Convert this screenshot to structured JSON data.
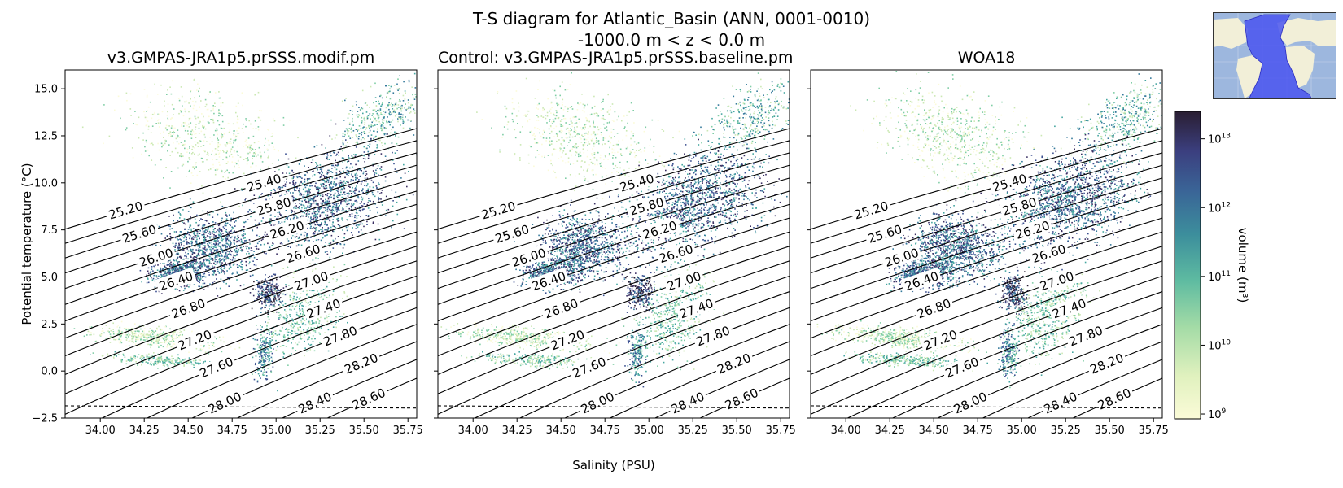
{
  "figure": {
    "title_line1": "T-S diagram for Atlantic_Basin (ANN, 0001-0010)",
    "title_line2": "-1000.0 m < z < 0.0 m"
  },
  "colors": {
    "contour": "#000000",
    "cmap": [
      "#fbfbd8",
      "#cbe8b3",
      "#7fcea5",
      "#45a6a0",
      "#34799b",
      "#3b4f90",
      "#3a2f63",
      "#2a1e32"
    ]
  },
  "chart_data": {
    "type": "scatter",
    "subtype": "2d-histogram T-S diagram with density contours",
    "xlabel": "Salinity (PSU)",
    "ylabel": "Potential temperature (°C)",
    "xlim": [
      33.8,
      35.8
    ],
    "ylim": [
      -2.5,
      16.0
    ],
    "xticks": [
      34.0,
      34.25,
      34.5,
      34.75,
      35.0,
      35.25,
      35.5,
      35.75
    ],
    "xtick_labels": [
      "34.00",
      "34.25",
      "34.50",
      "34.75",
      "35.00",
      "35.25",
      "35.50",
      "35.75"
    ],
    "yticks": [
      -2.5,
      0.0,
      2.5,
      5.0,
      7.5,
      10.0,
      12.5,
      15.0
    ],
    "ytick_labels": [
      "−2.5",
      "0.0",
      "2.5",
      "5.0",
      "7.5",
      "10.0",
      "12.5",
      "15.0"
    ],
    "freezing_line_temp": [
      -1.85,
      -1.97
    ],
    "density_contours": [
      25.2,
      25.4,
      25.6,
      25.8,
      26.0,
      26.2,
      26.4,
      26.6,
      26.8,
      27.0,
      27.2,
      27.4,
      27.6,
      27.8,
      28.0,
      28.2,
      28.4,
      28.6
    ],
    "density_labels": [
      "25.20",
      "25.40",
      "25.60",
      "25.80",
      "26.00",
      "26.20",
      "26.40",
      "26.60",
      "26.80",
      "27.00",
      "27.20",
      "27.40",
      "27.60",
      "27.80",
      "28.00",
      "28.20",
      "28.40",
      "28.60"
    ],
    "panels": [
      {
        "title": "v3.GMPAS-JRA1p5.prSSS.modif.pm"
      },
      {
        "title": "Control: v3.GMPAS-JRA1p5.prSSS.baseline.pm"
      },
      {
        "title": "WOA18"
      }
    ],
    "colorbar": {
      "label": "volume (m³)",
      "scale": "log",
      "range": [
        850000000.0,
        25000000000000.0
      ],
      "tick_values": [
        1000000000.0,
        10000000000.0,
        100000000000.0,
        1000000000000.0,
        10000000000000.0
      ],
      "tick_base": "10",
      "tick_exponents": [
        "9",
        "10",
        "11",
        "12",
        "13"
      ]
    }
  }
}
